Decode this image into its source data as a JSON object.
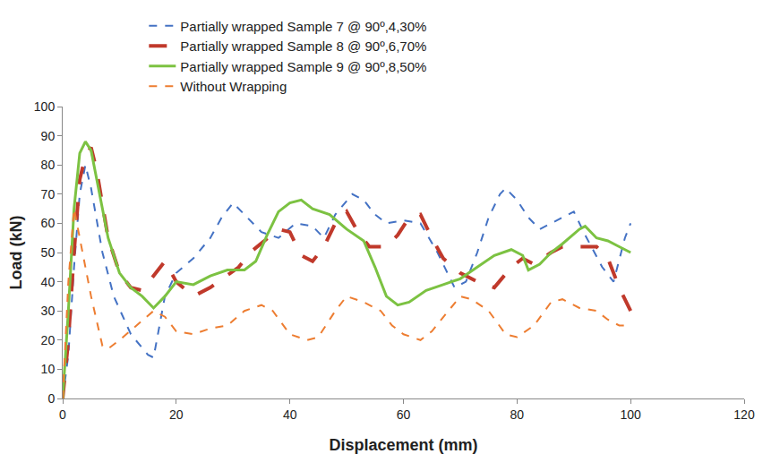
{
  "chart_data": {
    "type": "line",
    "x_label": "Displacement (mm)",
    "y_label": "Load (kN)",
    "xlim": [
      0,
      120
    ],
    "xticks": [
      0,
      20,
      40,
      60,
      80,
      100,
      120
    ],
    "ylim": [
      0,
      100
    ],
    "yticks": [
      0,
      10,
      20,
      30,
      40,
      50,
      60,
      70,
      80,
      90,
      100
    ],
    "grid": false,
    "legend": "top",
    "series": [
      {
        "name": "Partially wrapped Sample 7 @ 90º,4,30%",
        "color": "#4472c4",
        "line_style": "dash",
        "x": [
          0,
          1,
          2,
          3,
          4,
          5,
          7,
          9,
          12,
          15,
          16,
          18,
          20,
          23,
          26,
          28,
          30,
          32,
          35,
          38,
          41,
          44,
          46,
          48,
          51,
          53,
          55,
          57,
          60,
          63,
          66,
          69,
          71,
          73,
          75,
          77,
          78,
          80,
          82,
          84,
          86,
          88,
          90,
          92,
          95,
          97,
          99,
          100
        ],
        "values": [
          0,
          15,
          45,
          70,
          80,
          72,
          50,
          35,
          22,
          15,
          14,
          35,
          43,
          48,
          55,
          62,
          67,
          63,
          57,
          55,
          60,
          59,
          55,
          63,
          70,
          68,
          63,
          60,
          61,
          60,
          50,
          38,
          40,
          50,
          62,
          70,
          72,
          68,
          62,
          58,
          60,
          62,
          64,
          56,
          45,
          40,
          55,
          60
        ]
      },
      {
        "name": "Partially wrapped Sample 8 @ 90º,6,70%",
        "color": "#c0392b",
        "line_style": "longdash",
        "x": [
          0,
          1,
          2,
          3,
          4,
          5,
          6,
          8,
          10,
          12,
          14,
          16,
          18,
          20,
          23,
          26,
          29,
          31,
          33,
          36,
          38,
          40,
          42,
          44,
          46,
          48,
          50,
          52,
          54,
          57,
          59,
          61,
          63,
          65,
          67,
          70,
          73,
          76,
          79,
          81,
          83,
          86,
          88,
          91,
          94,
          96,
          98,
          100
        ],
        "values": [
          0,
          20,
          50,
          75,
          83,
          86,
          78,
          55,
          43,
          38,
          37,
          42,
          47,
          40,
          35,
          38,
          42,
          45,
          50,
          55,
          58,
          57,
          49,
          47,
          52,
          60,
          64,
          57,
          52,
          52,
          56,
          62,
          63,
          55,
          48,
          43,
          40,
          38,
          45,
          48,
          46,
          50,
          52,
          52,
          52,
          48,
          38,
          30
        ]
      },
      {
        "name": "Partially wrapped Sample 9 @ 90º,8,50%",
        "color": "#7cc242",
        "line_style": "solid",
        "x": [
          0,
          1,
          2,
          3,
          4,
          5,
          6,
          8,
          10,
          12,
          14,
          16,
          18,
          20,
          23,
          26,
          29,
          32,
          34,
          36,
          38,
          40,
          42,
          44,
          47,
          50,
          53,
          55,
          57,
          59,
          61,
          64,
          67,
          70,
          73,
          76,
          79,
          81,
          82,
          84,
          86,
          88,
          91,
          92,
          94,
          96,
          98,
          100
        ],
        "values": [
          0,
          30,
          65,
          84,
          88,
          85,
          75,
          55,
          43,
          38,
          35,
          31,
          35,
          40,
          39,
          42,
          44,
          44,
          47,
          56,
          64,
          67,
          68,
          65,
          63,
          58,
          54,
          45,
          35,
          32,
          33,
          37,
          39,
          41,
          45,
          49,
          51,
          49,
          44,
          46,
          50,
          53,
          58,
          59,
          55,
          54,
          52,
          50
        ]
      },
      {
        "name": "Without Wrapping",
        "color": "#ed7d31",
        "line_style": "dash",
        "x": [
          0,
          1,
          2,
          3,
          5,
          7,
          8,
          10,
          13,
          16,
          18,
          20,
          23,
          26,
          29,
          32,
          35,
          37,
          40,
          43,
          45,
          48,
          50,
          53,
          56,
          58,
          60,
          63,
          65,
          68,
          70,
          72,
          75,
          78,
          80,
          83,
          86,
          88,
          91,
          94,
          96,
          98,
          100
        ],
        "values": [
          0,
          40,
          65,
          55,
          35,
          18,
          17,
          20,
          25,
          30,
          28,
          23,
          22,
          24,
          25,
          30,
          32,
          30,
          22,
          20,
          21,
          30,
          35,
          33,
          30,
          25,
          22,
          20,
          23,
          30,
          35,
          34,
          30,
          22,
          21,
          25,
          33,
          34,
          31,
          30,
          27,
          25,
          25
        ]
      }
    ]
  }
}
